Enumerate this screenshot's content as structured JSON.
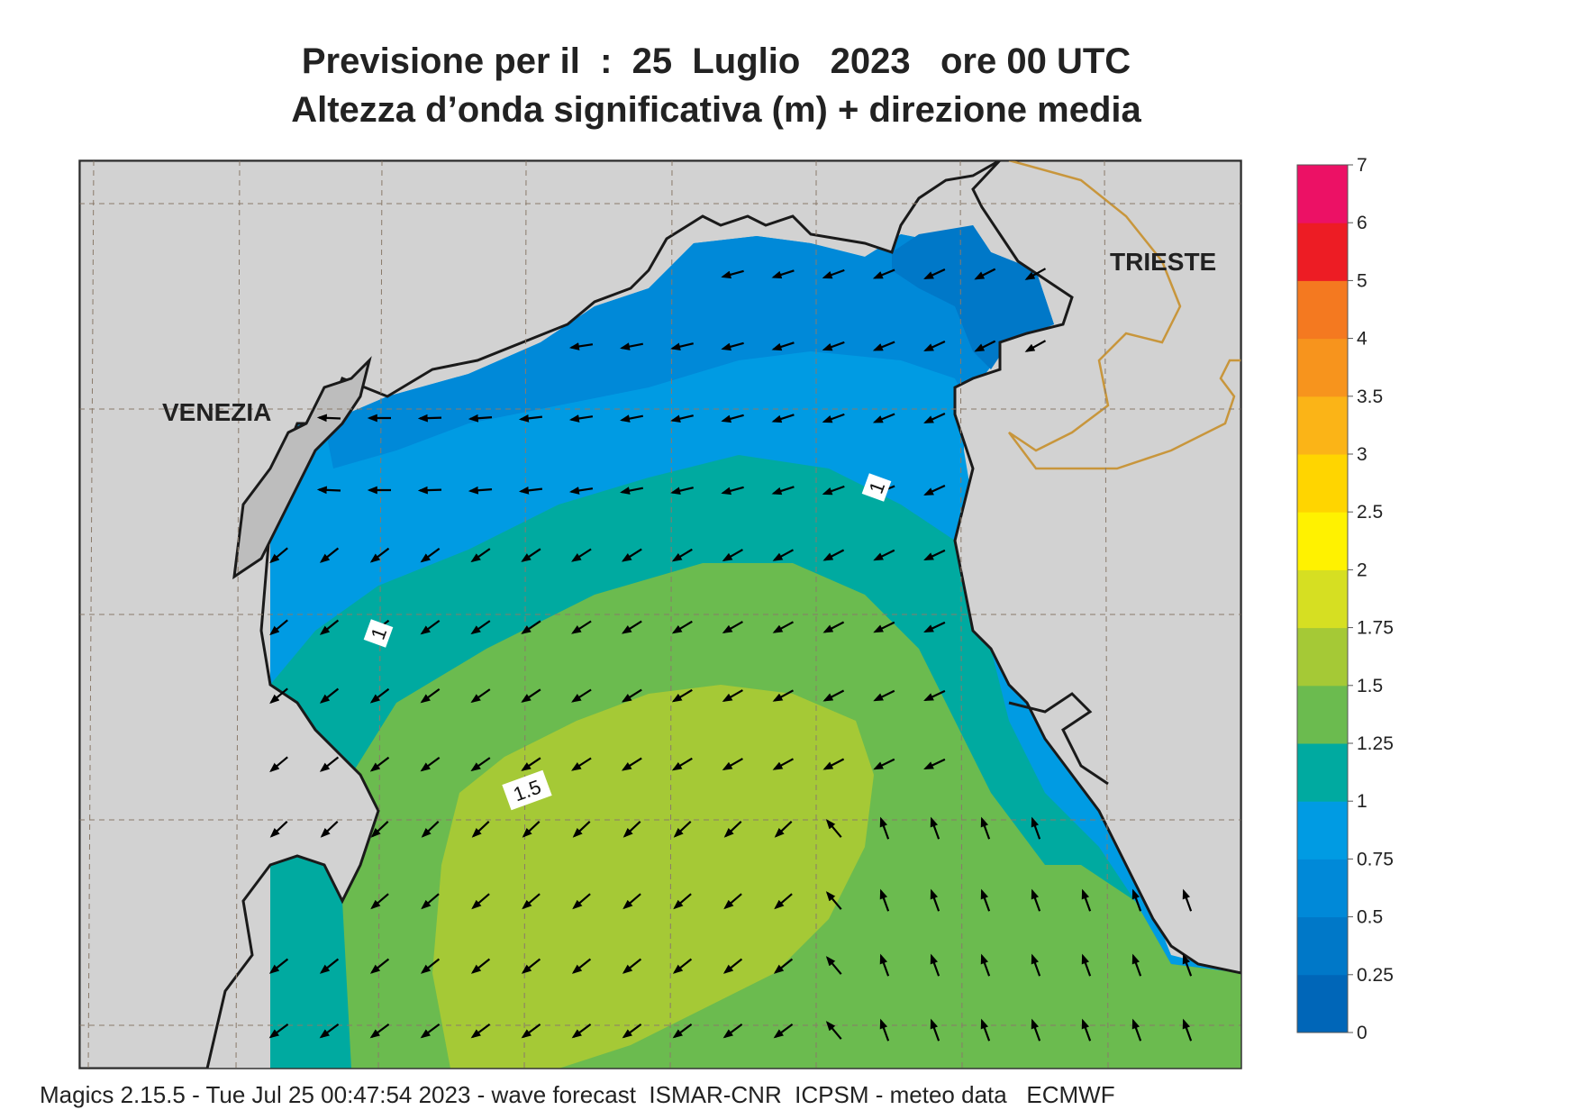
{
  "header": {
    "title_line1": "Previsione per il  :  25  Luglio   2023   ore 00 UTC",
    "title_line2": "Altezza d’onda significativa (m) + direzione media"
  },
  "footer": {
    "text": "Magics 2.15.5 - Tue Jul 25 00:47:54 2023 - wave forecast  ISMAR-CNR  ICPSM - meteo data   ECMWF"
  },
  "map": {
    "cities": [
      {
        "name": "VENEZIA"
      },
      {
        "name": "TRIESTE"
      }
    ],
    "contour_labels": [
      "1",
      "1",
      "1.5"
    ],
    "land_color": "#d2d2d2",
    "border_color": "#c8963c"
  },
  "chart_data": {
    "type": "heatmap",
    "variable": "Altezza d’onda significativa (m)",
    "colorbar": {
      "ticks": [
        "7",
        "6",
        "5",
        "4",
        "3.5",
        "3",
        "2.5",
        "2",
        "1.75",
        "1.5",
        "1.25",
        "1",
        "0.75",
        "0.5",
        "0.25",
        "0"
      ],
      "levels": [
        {
          "from": 0,
          "to": 0.25,
          "color": "#0066b8"
        },
        {
          "from": 0.25,
          "to": 0.5,
          "color": "#0078c8"
        },
        {
          "from": 0.5,
          "to": 0.75,
          "color": "#0089d8"
        },
        {
          "from": 0.75,
          "to": 1,
          "color": "#009be3"
        },
        {
          "from": 1,
          "to": 1.25,
          "color": "#00aaa0"
        },
        {
          "from": 1.25,
          "to": 1.5,
          "color": "#6bbb4f"
        },
        {
          "from": 1.5,
          "to": 1.75,
          "color": "#a5c936"
        },
        {
          "from": 1.75,
          "to": 2,
          "color": "#d6df22"
        },
        {
          "from": 2,
          "to": 2.5,
          "color": "#fff200"
        },
        {
          "from": 2.5,
          "to": 3,
          "color": "#ffd500"
        },
        {
          "from": 3,
          "to": 3.5,
          "color": "#fbb417"
        },
        {
          "from": 3.5,
          "to": 4,
          "color": "#f7941d"
        },
        {
          "from": 4,
          "to": 5,
          "color": "#f47920"
        },
        {
          "from": 5,
          "to": 6,
          "color": "#ed1c24"
        },
        {
          "from": 6,
          "to": 7,
          "color": "#ec1165"
        }
      ]
    },
    "field_summary": {
      "max_wave_height_band": "1.5-1.75",
      "mean_direction": "from north-east, rotating to from south-east in the southern part"
    },
    "grid": true
  }
}
